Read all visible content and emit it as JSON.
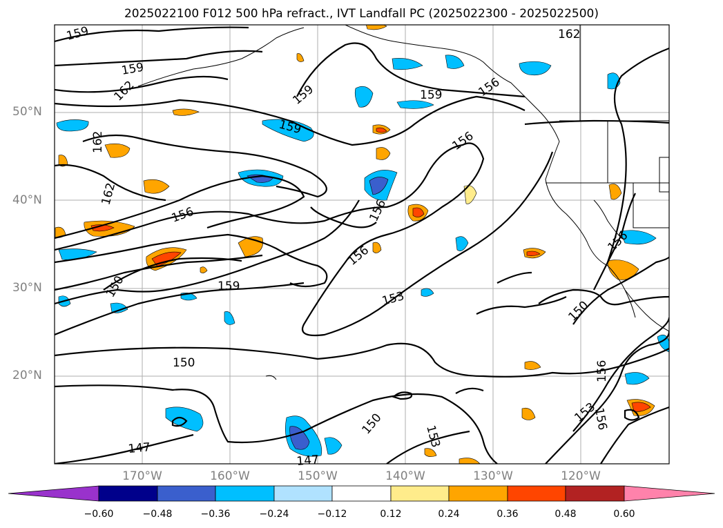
{
  "title": "2025022100 F012 500 hPa refract., IVT Landfall PC (2025022300 - 2025022500)",
  "lat_labels": [
    "50°N",
    "40°N",
    "30°N",
    "20°N"
  ],
  "lon_labels": [
    "170°W",
    "160°W",
    "150°W",
    "140°W",
    "130°W",
    "120°W"
  ],
  "colorbar": {
    "ticks": [
      "−0.60",
      "−0.48",
      "−0.36",
      "−0.24",
      "−0.12",
      "0.12",
      "0.24",
      "0.36",
      "0.48",
      "0.60"
    ],
    "colors": [
      "#9932cc",
      "#00008b",
      "#3a5fcd",
      "#00bfff",
      "#b0e2ff",
      "#ffffff",
      "#ffec8b",
      "#ffa500",
      "#ff4500",
      "#b22222",
      "#ff82ab"
    ]
  },
  "contour_labels": [
    "159",
    "159",
    "162",
    "162",
    "159",
    "159",
    "162",
    "156",
    "156",
    "159",
    "150",
    "159",
    "150",
    "156",
    "156",
    "153",
    "150",
    "156",
    "153",
    "156",
    "156",
    "147",
    "147",
    "150",
    "153",
    "162",
    "156"
  ]
}
